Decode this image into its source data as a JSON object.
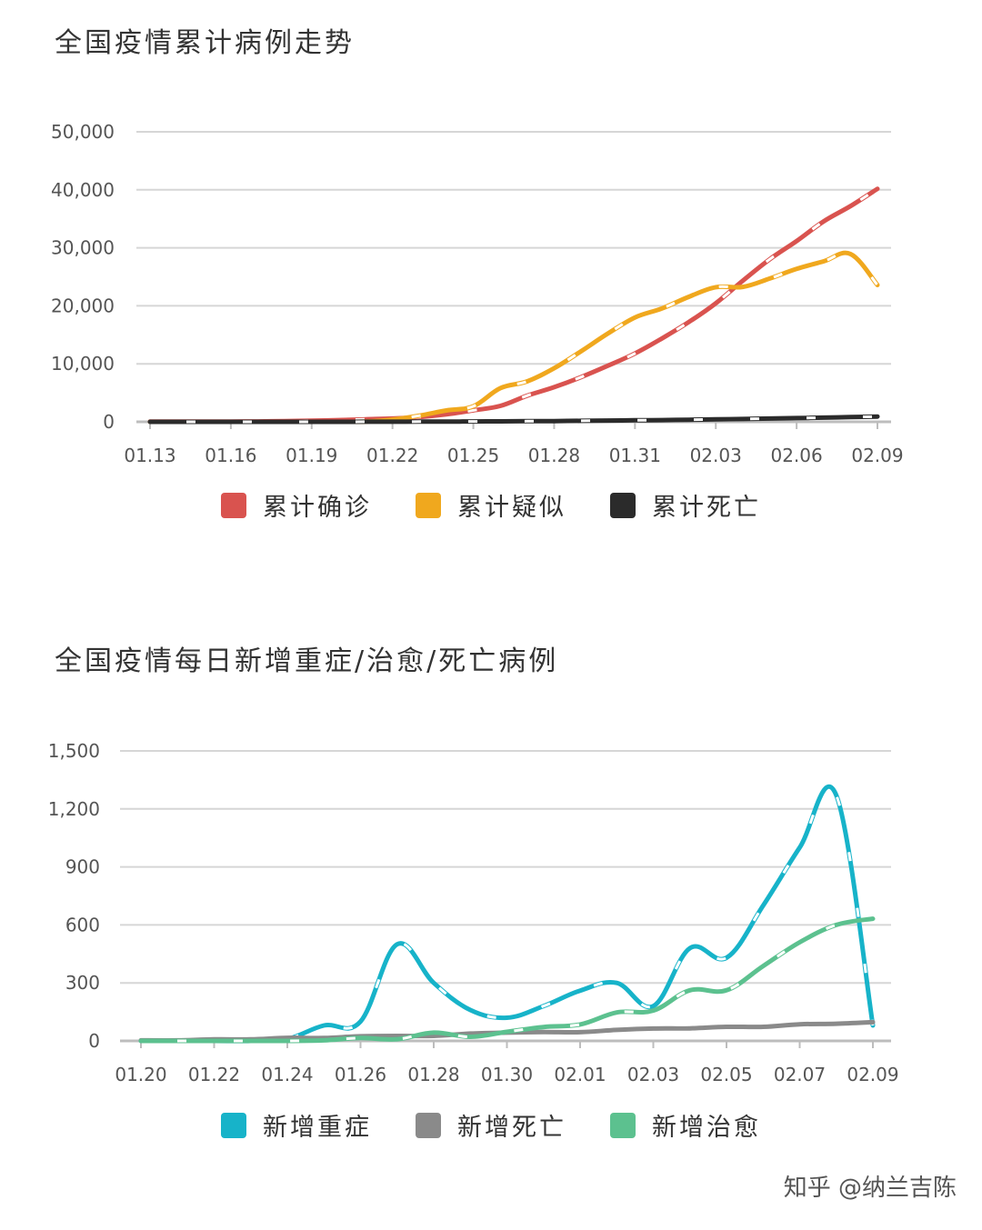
{
  "chart_data": [
    {
      "type": "line",
      "title": "全国疫情累计病例走势",
      "xlabel": "",
      "ylabel": "",
      "ylim": [
        0,
        50000
      ],
      "y_ticks": [
        "0",
        "10,000",
        "20,000",
        "30,000",
        "40,000",
        "50,000"
      ],
      "y_tick_values": [
        0,
        10000,
        20000,
        30000,
        40000,
        50000
      ],
      "x_tick_labels": [
        "01.13",
        "01.16",
        "01.19",
        "01.22",
        "01.25",
        "01.28",
        "01.31",
        "02.03",
        "02.06",
        "02.09"
      ],
      "grid": true,
      "legend_position": "bottom",
      "x": [
        "01.13",
        "01.14",
        "01.15",
        "01.16",
        "01.17",
        "01.18",
        "01.19",
        "01.20",
        "01.21",
        "01.22",
        "01.23",
        "01.24",
        "01.25",
        "01.26",
        "01.27",
        "01.28",
        "01.29",
        "01.30",
        "01.31",
        "02.01",
        "02.02",
        "02.03",
        "02.04",
        "02.05",
        "02.06",
        "02.07",
        "02.08",
        "02.09"
      ],
      "series": [
        {
          "name": "累计确诊",
          "color": "#d9534f",
          "style": "dashed",
          "values": [
            41,
            41,
            41,
            45,
            62,
            121,
            198,
            291,
            440,
            571,
            830,
            1287,
            1975,
            2744,
            4515,
            5974,
            7711,
            9692,
            11791,
            14380,
            17205,
            20438,
            24324,
            28018,
            31161,
            34546,
            37198,
            40171
          ]
        },
        {
          "name": "累计疑似",
          "color": "#f0a81e",
          "style": "dashed",
          "values": [
            0,
            0,
            0,
            0,
            0,
            0,
            0,
            0,
            37,
            393,
            1072,
            1965,
            2684,
            5794,
            6973,
            9239,
            12167,
            15238,
            17988,
            19544,
            21558,
            23214,
            23260,
            24702,
            26359,
            27657,
            28942,
            23589
          ]
        },
        {
          "name": "累计死亡",
          "color": "#2b2b2b",
          "style": "dashed",
          "values": [
            1,
            1,
            2,
            2,
            2,
            3,
            3,
            6,
            9,
            17,
            25,
            41,
            56,
            80,
            106,
            132,
            170,
            213,
            259,
            304,
            361,
            425,
            490,
            563,
            636,
            722,
            811,
            908
          ]
        }
      ]
    },
    {
      "type": "line",
      "title": "全国疫情每日新增重症/治愈/死亡病例",
      "xlabel": "",
      "ylabel": "",
      "ylim": [
        0,
        1500
      ],
      "y_ticks": [
        "0",
        "300",
        "600",
        "900",
        "1,200",
        "1,500"
      ],
      "y_tick_values": [
        0,
        300,
        600,
        900,
        1200,
        1500
      ],
      "x_tick_labels": [
        "01.20",
        "01.22",
        "01.24",
        "01.26",
        "01.28",
        "01.30",
        "02.01",
        "02.03",
        "02.05",
        "02.07",
        "02.09"
      ],
      "grid": true,
      "legend_position": "bottom",
      "x": [
        "01.20",
        "01.21",
        "01.22",
        "01.23",
        "01.24",
        "01.25",
        "01.26",
        "01.27",
        "01.28",
        "01.29",
        "01.30",
        "01.31",
        "02.01",
        "02.02",
        "02.03",
        "02.04",
        "02.05",
        "02.06",
        "02.07",
        "02.08",
        "02.09"
      ],
      "series": [
        {
          "name": "新增重症",
          "color": "#17b3c9",
          "style": "dashed",
          "values": [
            0,
            0,
            0,
            0,
            10,
            80,
            100,
            500,
            300,
            160,
            120,
            180,
            260,
            300,
            180,
            480,
            430,
            700,
            1000,
            1270,
            80
          ]
        },
        {
          "name": "新增死亡",
          "color": "#8a8a8a",
          "style": "solid",
          "values": [
            3,
            3,
            8,
            8,
            16,
            15,
            24,
            26,
            26,
            38,
            43,
            46,
            45,
            57,
            64,
            65,
            73,
            73,
            86,
            89,
            97
          ]
        },
        {
          "name": "新增治愈",
          "color": "#5cc18f",
          "style": "dashed",
          "values": [
            0,
            0,
            0,
            0,
            0,
            3,
            15,
            9,
            43,
            21,
            47,
            72,
            85,
            147,
            157,
            262,
            262,
            387,
            510,
            600,
            632
          ]
        }
      ]
    }
  ],
  "watermark": "知乎 @纳兰吉陈"
}
